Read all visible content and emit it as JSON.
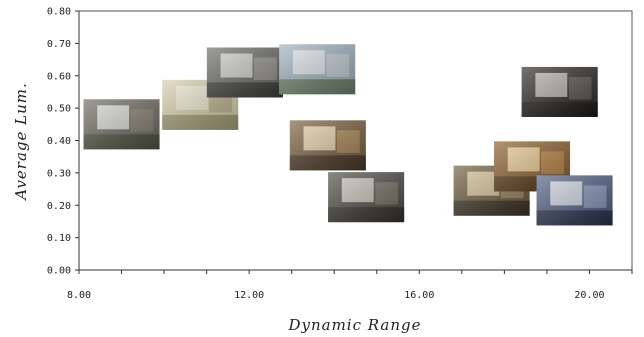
{
  "chart_data": {
    "type": "scatter",
    "title": "",
    "xlabel": "Dynamic Range",
    "ylabel": "Average Lum.",
    "xlim": [
      8.0,
      21.0
    ],
    "ylim": [
      0.0,
      0.8
    ],
    "grid": false,
    "x_ticks": [
      8.0,
      12.0,
      16.0,
      20.0
    ],
    "x_tick_labels": [
      "8.00",
      "12.00",
      "16.00",
      "20.00"
    ],
    "x_minor_step": 1.0,
    "y_ticks": [
      0.0,
      0.1,
      0.2,
      0.3,
      0.4,
      0.5,
      0.6,
      0.7,
      0.8
    ],
    "y_tick_labels": [
      "0.00",
      "0.10",
      "0.20",
      "0.30",
      "0.40",
      "0.50",
      "0.60",
      "0.70",
      "0.80"
    ],
    "marker": "image-thumbnail",
    "points": [
      {
        "x": 9.0,
        "y": 0.45,
        "scene": "house-exterior",
        "colors": [
          "#6d6a60",
          "#e8e8e6",
          "#3e4a33",
          "#8a7f70"
        ]
      },
      {
        "x": 10.85,
        "y": 0.51,
        "scene": "bright-corridor",
        "colors": [
          "#d8cfae",
          "#f2ecd6",
          "#8e8a62",
          "#b9ad86"
        ]
      },
      {
        "x": 11.9,
        "y": 0.61,
        "scene": "window-view",
        "colors": [
          "#6a6a66",
          "#dcdcd6",
          "#2e2e2c",
          "#9c9a92"
        ]
      },
      {
        "x": 13.6,
        "y": 0.62,
        "scene": "sky-landscape",
        "colors": [
          "#9fb2bf",
          "#e4eaee",
          "#5a6a48",
          "#c7d1d6"
        ]
      },
      {
        "x": 13.85,
        "y": 0.385,
        "scene": "church-interior",
        "colors": [
          "#7a5e3e",
          "#f3e2b8",
          "#3a2a1c",
          "#b58c58"
        ]
      },
      {
        "x": 14.75,
        "y": 0.225,
        "scene": "dim-room-lamp",
        "colors": [
          "#4c4a44",
          "#d8d4c8",
          "#2a2822",
          "#7a7466"
        ]
      },
      {
        "x": 17.7,
        "y": 0.245,
        "scene": "lamp-room",
        "colors": [
          "#6e5c3c",
          "#e6d4a4",
          "#2c2418",
          "#a58e60"
        ]
      },
      {
        "x": 18.65,
        "y": 0.32,
        "scene": "ornate-ceiling",
        "colors": [
          "#8a5e2a",
          "#f4d9a0",
          "#4a2e12",
          "#c08a44"
        ]
      },
      {
        "x": 19.3,
        "y": 0.55,
        "scene": "dark-interior",
        "colors": [
          "#2a2826",
          "#c8c6c0",
          "#141312",
          "#5e5a54"
        ]
      },
      {
        "x": 19.65,
        "y": 0.215,
        "scene": "garage-blue",
        "colors": [
          "#4e5e82",
          "#e2e6f0",
          "#1c2236",
          "#8fa0c4"
        ]
      }
    ]
  }
}
